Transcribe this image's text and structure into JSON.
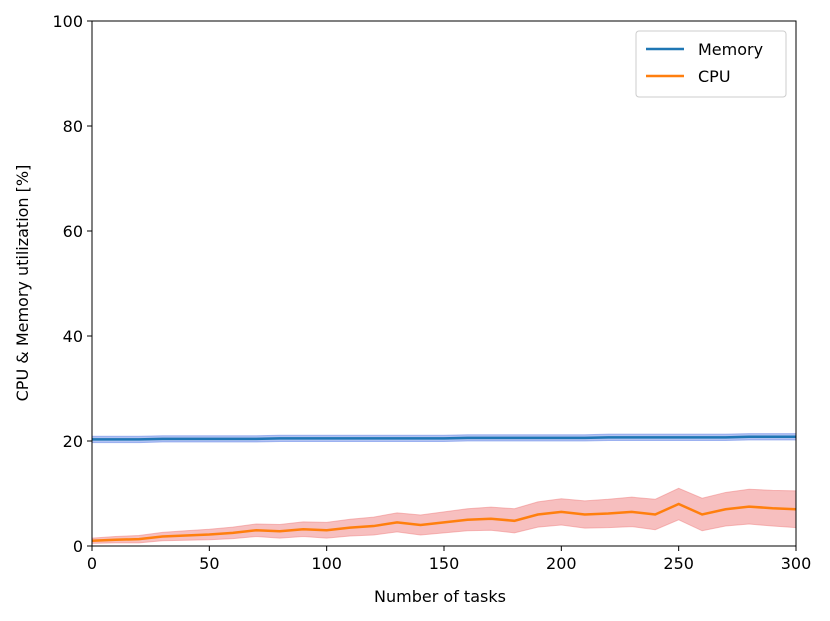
{
  "chart_data": {
    "type": "line",
    "xlabel": "Number of tasks",
    "ylabel": "CPU & Memory utilization [%]",
    "x": [
      0,
      10,
      20,
      30,
      40,
      50,
      60,
      70,
      80,
      90,
      100,
      110,
      120,
      130,
      140,
      150,
      160,
      170,
      180,
      190,
      200,
      210,
      220,
      230,
      240,
      250,
      260,
      270,
      280,
      290,
      300
    ],
    "series": [
      {
        "name": "Memory",
        "color": "#1f77b4",
        "band_color": "#4169e1",
        "band_opacity": 0.4,
        "values": [
          20.3,
          20.3,
          20.3,
          20.4,
          20.4,
          20.4,
          20.4,
          20.4,
          20.5,
          20.5,
          20.5,
          20.5,
          20.5,
          20.5,
          20.5,
          20.5,
          20.6,
          20.6,
          20.6,
          20.6,
          20.6,
          20.6,
          20.7,
          20.7,
          20.7,
          20.7,
          20.7,
          20.7,
          20.8,
          20.8,
          20.8
        ],
        "band_lower": [
          19.7,
          19.7,
          19.7,
          19.8,
          19.8,
          19.8,
          19.8,
          19.8,
          19.9,
          19.9,
          19.9,
          19.9,
          19.9,
          19.9,
          19.9,
          19.9,
          20.0,
          20.0,
          20.0,
          20.0,
          20.0,
          20.0,
          20.1,
          20.1,
          20.1,
          20.1,
          20.1,
          20.1,
          20.2,
          20.2,
          20.2
        ],
        "band_upper": [
          20.9,
          20.9,
          20.9,
          21.0,
          21.0,
          21.0,
          21.0,
          21.0,
          21.1,
          21.1,
          21.1,
          21.1,
          21.1,
          21.1,
          21.1,
          21.1,
          21.2,
          21.2,
          21.2,
          21.2,
          21.2,
          21.2,
          21.3,
          21.3,
          21.3,
          21.3,
          21.3,
          21.3,
          21.4,
          21.4,
          21.4
        ]
      },
      {
        "name": "CPU",
        "color": "#ff7f0e",
        "band_color": "#f08080",
        "band_opacity": 0.5,
        "values": [
          1.0,
          1.2,
          1.3,
          1.8,
          2.0,
          2.2,
          2.5,
          3.0,
          2.8,
          3.2,
          3.0,
          3.5,
          3.8,
          4.5,
          4.0,
          4.5,
          5.0,
          5.2,
          4.8,
          6.0,
          6.5,
          6.0,
          6.2,
          6.5,
          6.0,
          8.0,
          6.0,
          7.0,
          7.5,
          7.2,
          7.0
        ],
        "band_lower": [
          0.5,
          0.6,
          0.6,
          1.0,
          1.1,
          1.2,
          1.4,
          1.8,
          1.5,
          1.8,
          1.5,
          1.9,
          2.1,
          2.7,
          2.1,
          2.5,
          2.9,
          3.0,
          2.5,
          3.6,
          4.0,
          3.4,
          3.5,
          3.7,
          3.1,
          5.0,
          2.9,
          3.8,
          4.2,
          3.8,
          3.5
        ],
        "band_upper": [
          1.5,
          1.8,
          2.0,
          2.6,
          2.9,
          3.2,
          3.6,
          4.2,
          4.1,
          4.6,
          4.5,
          5.1,
          5.5,
          6.3,
          5.9,
          6.5,
          7.1,
          7.4,
          7.1,
          8.4,
          9.0,
          8.6,
          8.9,
          9.3,
          8.9,
          11.0,
          9.1,
          10.2,
          10.8,
          10.6,
          10.5
        ]
      }
    ],
    "xlim": [
      0,
      300
    ],
    "ylim": [
      0,
      100
    ],
    "xticks": [
      0,
      50,
      100,
      150,
      200,
      250,
      300
    ],
    "yticks": [
      0,
      20,
      40,
      60,
      80,
      100
    ],
    "legend": "upper right"
  }
}
